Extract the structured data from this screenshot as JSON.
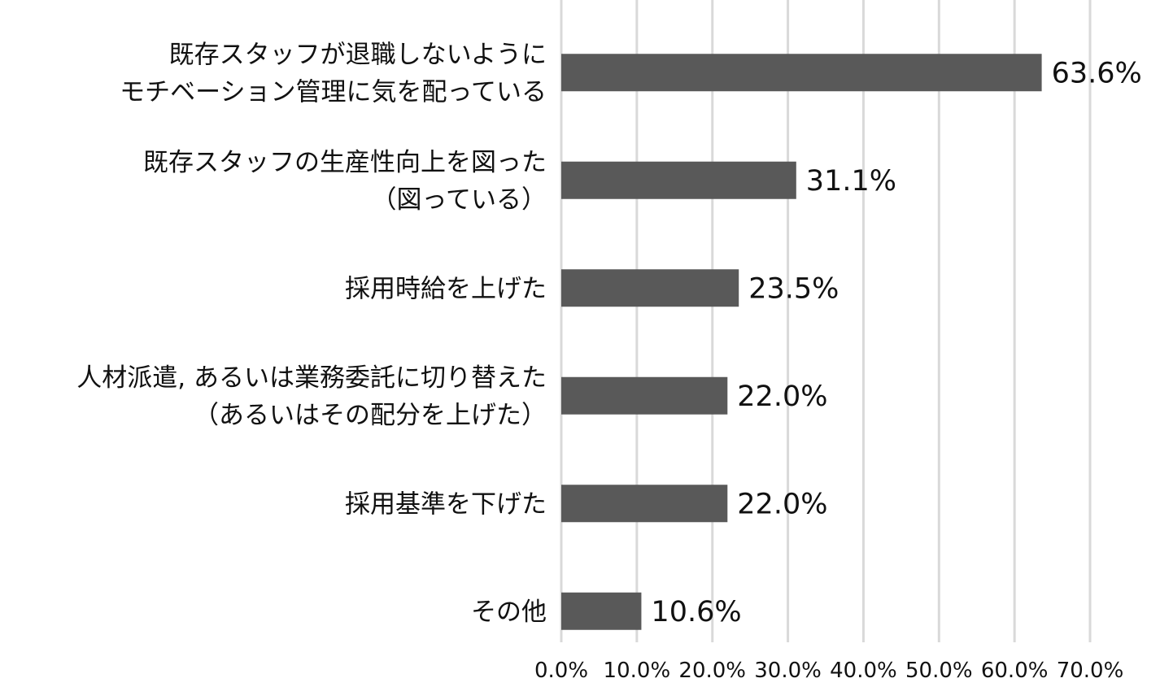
{
  "chart_data": {
    "type": "bar",
    "orientation": "horizontal",
    "title": "",
    "xlabel": "",
    "ylabel": "",
    "xlim": [
      0,
      70
    ],
    "x_ticks": [
      "0.0%",
      "10.0%",
      "20.0%",
      "30.0%",
      "40.0%",
      "50.0%",
      "60.0%",
      "70.0%"
    ],
    "grid": true,
    "bar_color": "#595959",
    "grid_color": "#d9d9d9",
    "categories": [
      [
        "既存スタッフが退職しないように",
        "モチベーション管理に気を配っている"
      ],
      [
        "既存スタッフの生産性向上を図った",
        "（図っている）"
      ],
      [
        "採用時給を上げた"
      ],
      [
        "人材派遣, あるいは業務委託に切り替えた",
        "（あるいはその配分を上げた）"
      ],
      [
        "採用基準を下げた"
      ],
      [
        "その他"
      ]
    ],
    "values": [
      63.6,
      31.1,
      23.5,
      22.0,
      22.0,
      10.6
    ],
    "value_labels": [
      "63.6%",
      "31.1%",
      "23.5%",
      "22.0%",
      "22.0%",
      "10.6%"
    ]
  }
}
